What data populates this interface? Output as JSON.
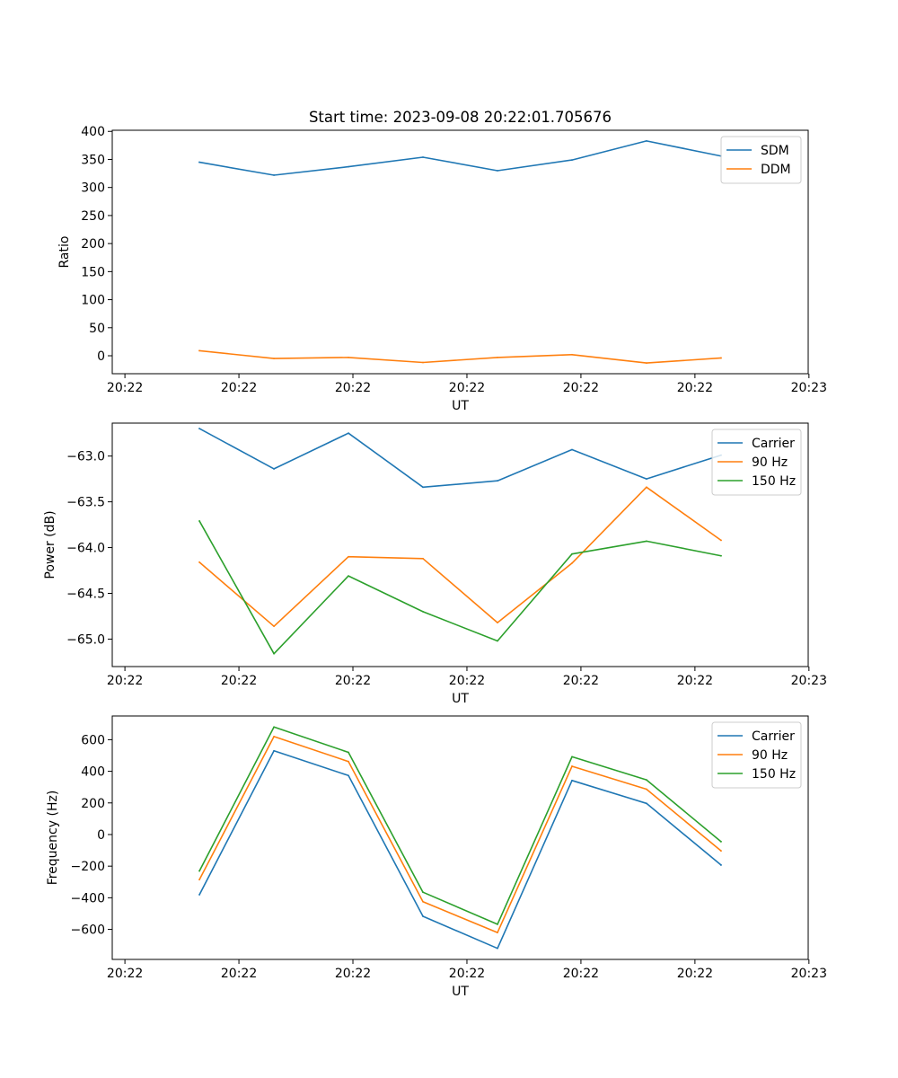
{
  "title": "Start time: 2023-09-08 20:22:01.705676",
  "colors": {
    "blue": "#1f77b4",
    "orange": "#ff7f0e",
    "green": "#2ca02c"
  },
  "chart_data": [
    {
      "type": "line",
      "title": "Start time: 2023-09-08 20:22:01.705676",
      "xlabel": "UT",
      "ylabel": "Ratio",
      "x": [
        1,
        2,
        3,
        4,
        5,
        6,
        7,
        8
      ],
      "xlim": [
        -0.17,
        9.17
      ],
      "xticks": [
        0,
        1.53,
        3.06,
        4.59,
        6.12,
        7.65,
        9.18
      ],
      "xtick_labels": [
        "20:22",
        "20:22",
        "20:22",
        "20:22",
        "20:22",
        "20:22",
        "20:23"
      ],
      "ylim": [
        -32,
        402
      ],
      "yticks": [
        0,
        50,
        100,
        150,
        200,
        250,
        300,
        350,
        400
      ],
      "ytick_labels": [
        "0",
        "50",
        "100",
        "150",
        "200",
        "250",
        "300",
        "350",
        "400"
      ],
      "legend": "top-right",
      "grid": false,
      "series": [
        {
          "name": "SDM",
          "color": "#1f77b4",
          "values": [
            345,
            322,
            337,
            354,
            330,
            349,
            383,
            356
          ]
        },
        {
          "name": "DDM",
          "color": "#ff7f0e",
          "values": [
            9,
            -5,
            -3,
            -12,
            -3,
            2,
            -13,
            -4
          ]
        }
      ]
    },
    {
      "type": "line",
      "xlabel": "UT",
      "ylabel": "Power (dB)",
      "x": [
        1,
        2,
        3,
        4,
        5,
        6,
        7,
        8
      ],
      "xlim": [
        -0.17,
        9.17
      ],
      "xticks": [
        0,
        1.53,
        3.06,
        4.59,
        6.12,
        7.65,
        9.18
      ],
      "xtick_labels": [
        "20:22",
        "20:22",
        "20:22",
        "20:22",
        "20:22",
        "20:22",
        "20:23"
      ],
      "ylim": [
        -65.3,
        -62.64
      ],
      "yticks": [
        -65.0,
        -64.5,
        -64.0,
        -63.5,
        -63.0
      ],
      "ytick_labels": [
        "−65.0",
        "−64.5",
        "−64.0",
        "−63.5",
        "−63.0"
      ],
      "legend": "top-right",
      "grid": false,
      "series": [
        {
          "name": "Carrier",
          "color": "#1f77b4",
          "values": [
            -62.7,
            -63.14,
            -62.75,
            -63.34,
            -63.27,
            -62.93,
            -63.25,
            -62.99
          ]
        },
        {
          "name": "90 Hz",
          "color": "#ff7f0e",
          "values": [
            -64.16,
            -64.86,
            -64.1,
            -64.12,
            -64.82,
            -64.17,
            -63.34,
            -63.92
          ]
        },
        {
          "name": "150 Hz",
          "color": "#2ca02c",
          "values": [
            -63.71,
            -65.16,
            -64.31,
            -64.7,
            -65.02,
            -64.07,
            -63.93,
            -64.09
          ]
        }
      ]
    },
    {
      "type": "line",
      "xlabel": "UT",
      "ylabel": "Frequency (Hz)",
      "x": [
        1,
        2,
        3,
        4,
        5,
        6,
        7,
        8
      ],
      "xlim": [
        -0.17,
        9.17
      ],
      "xticks": [
        0,
        1.53,
        3.06,
        4.59,
        6.12,
        7.65,
        9.18
      ],
      "xtick_labels": [
        "20:22",
        "20:22",
        "20:22",
        "20:22",
        "20:22",
        "20:22",
        "20:23"
      ],
      "ylim": [
        -790,
        750
      ],
      "yticks": [
        -600,
        -400,
        -200,
        0,
        200,
        400,
        600
      ],
      "ytick_labels": [
        "−600",
        "−400",
        "−200",
        "0",
        "200",
        "400",
        "600"
      ],
      "legend": "top-right",
      "grid": false,
      "series": [
        {
          "name": "Carrier",
          "color": "#1f77b4",
          "values": [
            -380,
            530,
            373,
            -517,
            -720,
            342,
            197,
            -193
          ]
        },
        {
          "name": "90 Hz",
          "color": "#ff7f0e",
          "values": [
            -285,
            620,
            462,
            -425,
            -620,
            432,
            287,
            -103
          ]
        },
        {
          "name": "150 Hz",
          "color": "#2ca02c",
          "values": [
            -230,
            680,
            520,
            -365,
            -568,
            492,
            346,
            -45
          ]
        }
      ]
    }
  ]
}
